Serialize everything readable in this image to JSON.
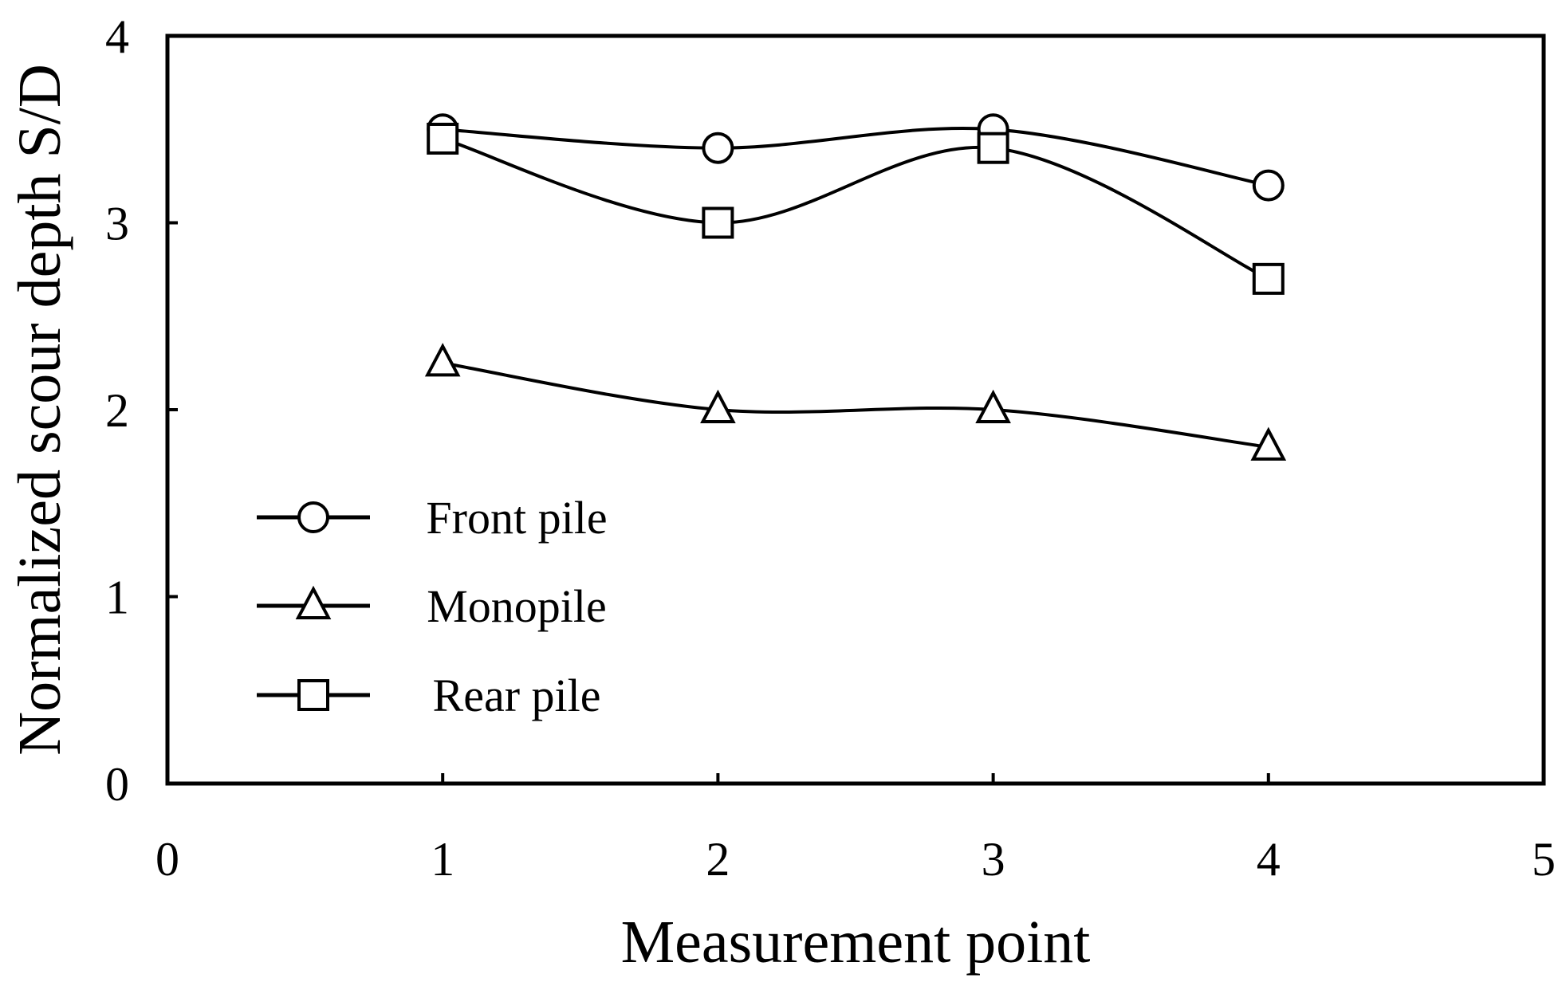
{
  "chart_data": {
    "type": "line",
    "title": "",
    "xlabel": "Measurement point",
    "ylabel": "Normalized scour depth S/D",
    "xlim": [
      0,
      5
    ],
    "ylim": [
      0,
      4
    ],
    "x_ticks": [
      0,
      1,
      2,
      3,
      4,
      5
    ],
    "y_ticks": [
      0,
      1,
      2,
      3,
      4
    ],
    "x_tick_labels": [
      "0",
      "1",
      "2",
      "3",
      "4",
      "5"
    ],
    "y_tick_labels": [
      "0",
      "1",
      "2",
      "3",
      "4"
    ],
    "grid": false,
    "legend_position": "bottom-left",
    "line_style": "smooth",
    "colors": {
      "line": "#000000",
      "marker_fill": "#ffffff",
      "background": "#ffffff"
    },
    "series": [
      {
        "name": "Front pile",
        "marker": "circle",
        "x": [
          1,
          2,
          3,
          4
        ],
        "y": [
          3.5,
          3.4,
          3.5,
          3.2
        ]
      },
      {
        "name": "Monopile",
        "marker": "triangle",
        "x": [
          1,
          2,
          3,
          4
        ],
        "y": [
          2.25,
          2.0,
          2.0,
          1.8
        ]
      },
      {
        "name": "Rear pile",
        "marker": "square",
        "x": [
          1,
          2,
          3,
          4
        ],
        "y": [
          3.45,
          3.0,
          3.4,
          2.7
        ]
      }
    ]
  }
}
